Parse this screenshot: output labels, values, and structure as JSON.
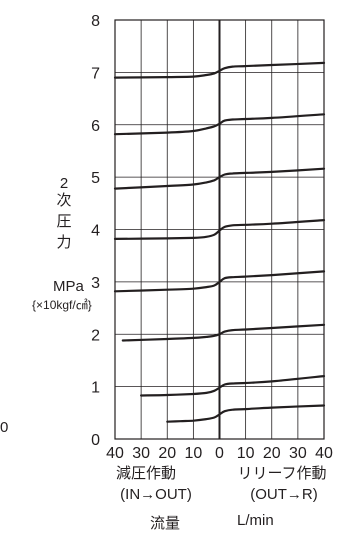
{
  "chart_data": {
    "type": "line",
    "y_axis": {
      "label_chars": [
        "2",
        "次",
        "圧",
        "力"
      ],
      "unit": "MPa",
      "unit_sub": "{×10kgf/㎠}",
      "range": [
        0,
        8
      ],
      "ticks": [
        "0",
        "1",
        "2",
        "3",
        "4",
        "5",
        "6",
        "7",
        "8"
      ]
    },
    "x_axis": {
      "range": [
        -40,
        40
      ],
      "tick_labels": [
        "40",
        "30",
        "20",
        "10",
        "0",
        "10",
        "20",
        "30",
        "40"
      ],
      "left_caption": "減圧作動",
      "left_sub": "(IN→OUT)",
      "right_caption": "リリーフ作動",
      "right_sub": "(OUT→R)",
      "label": "流量",
      "unit": "L/min"
    },
    "grid": true,
    "series": [
      {
        "x": [
          -40,
          -20,
          -10,
          -5,
          -2,
          0,
          2,
          5,
          10,
          20,
          40
        ],
        "y": [
          6.9,
          6.91,
          6.92,
          6.95,
          6.98,
          7.03,
          7.08,
          7.11,
          7.12,
          7.14,
          7.18
        ]
      },
      {
        "x": [
          -40,
          -20,
          -10,
          -5,
          -2,
          0,
          2,
          5,
          10,
          20,
          40
        ],
        "y": [
          5.82,
          5.85,
          5.88,
          5.93,
          5.97,
          6.02,
          6.08,
          6.1,
          6.11,
          6.13,
          6.2
        ]
      },
      {
        "x": [
          -40,
          -20,
          -10,
          -5,
          -2,
          0,
          2,
          5,
          10,
          20,
          40
        ],
        "y": [
          4.78,
          4.83,
          4.86,
          4.9,
          4.94,
          5.0,
          5.05,
          5.07,
          5.08,
          5.1,
          5.16
        ]
      },
      {
        "x": [
          -40,
          -20,
          -10,
          -5,
          -2,
          0,
          2,
          5,
          10,
          20,
          40
        ],
        "y": [
          3.82,
          3.83,
          3.84,
          3.86,
          3.9,
          3.98,
          4.05,
          4.08,
          4.09,
          4.11,
          4.18
        ]
      },
      {
        "x": [
          -40,
          -20,
          -10,
          -5,
          -2,
          0,
          2,
          5,
          10,
          20,
          40
        ],
        "y": [
          2.82,
          2.85,
          2.87,
          2.9,
          2.93,
          3.0,
          3.07,
          3.09,
          3.1,
          3.13,
          3.2
        ]
      },
      {
        "x": [
          -37,
          -20,
          -10,
          -5,
          -2,
          0,
          2,
          5,
          10,
          20,
          40
        ],
        "y": [
          1.88,
          1.91,
          1.93,
          1.95,
          1.97,
          2.0,
          2.05,
          2.08,
          2.09,
          2.12,
          2.18
        ]
      },
      {
        "x": [
          -30,
          -20,
          -10,
          -5,
          -2,
          0,
          2,
          5,
          10,
          20,
          40
        ],
        "y": [
          0.83,
          0.84,
          0.86,
          0.88,
          0.92,
          0.98,
          1.04,
          1.06,
          1.07,
          1.1,
          1.2
        ]
      },
      {
        "x": [
          -20,
          -15,
          -10,
          -5,
          -2,
          0,
          2,
          5,
          10,
          20,
          40
        ],
        "y": [
          0.33,
          0.34,
          0.35,
          0.38,
          0.41,
          0.47,
          0.53,
          0.56,
          0.57,
          0.6,
          0.64
        ]
      }
    ]
  },
  "cutoff_text": "0"
}
